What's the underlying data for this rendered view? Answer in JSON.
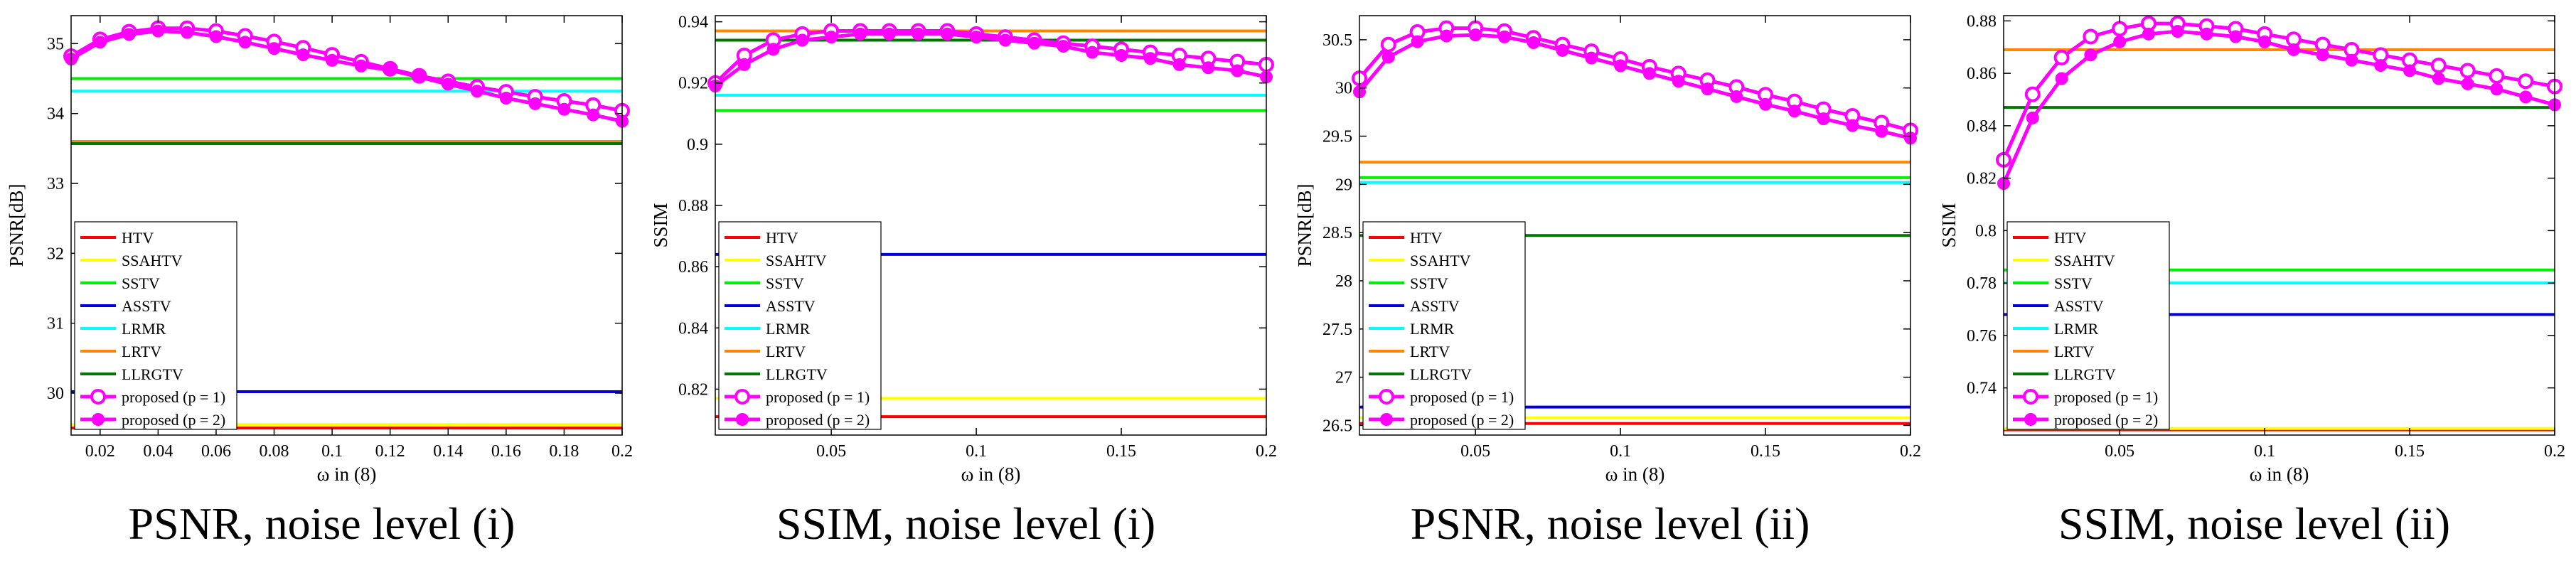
{
  "figure": {
    "captions": [
      "PSNR, noise level (i)",
      "SSIM, noise level (i)",
      "PSNR, noise level (ii)",
      "SSIM, noise level (ii)"
    ]
  },
  "legend_labels": [
    "HTV",
    "SSAHTV",
    "SSTV",
    "ASSTV",
    "LRMR",
    "LRTV",
    "LLRGTV",
    "proposed (p = 1)",
    "proposed (p = 2)"
  ],
  "chart_data": [
    {
      "type": "line",
      "title": "PSNR, noise level (i)",
      "xlabel": "ω in (8)",
      "ylabel": "PSNR[dB]",
      "xlim": [
        0.01,
        0.2
      ],
      "ylim": [
        29.4,
        35.4
      ],
      "xticks": [
        0.02,
        0.04,
        0.06,
        0.08,
        0.1,
        0.12,
        0.14,
        0.16,
        0.18,
        0.2
      ],
      "xtick_labels": [
        "0.02",
        "0.04",
        "0.06",
        "0.08",
        "0.1",
        "0.12",
        "0.14",
        "0.16",
        "0.18",
        "0.2"
      ],
      "yticks": [
        30,
        31,
        32,
        33,
        34,
        35
      ],
      "ytick_labels": [
        "30",
        "31",
        "32",
        "33",
        "34",
        "35"
      ],
      "grid": false,
      "legend_position": "bottom-left",
      "baselines": [
        {
          "name": "HTV",
          "value": 29.5,
          "color": "#ff0000"
        },
        {
          "name": "SSAHTV",
          "value": 29.55,
          "color": "#ffff00"
        },
        {
          "name": "SSTV",
          "value": 34.5,
          "color": "#00ee00"
        },
        {
          "name": "ASSTV",
          "value": 30.02,
          "color": "#0000dd"
        },
        {
          "name": "LRMR",
          "value": 34.32,
          "color": "#00ffff"
        },
        {
          "name": "LRTV",
          "value": 33.6,
          "color": "#ff8800"
        },
        {
          "name": "LLRGTV",
          "value": 33.57,
          "color": "#007700"
        }
      ],
      "series": [
        {
          "name": "proposed (p = 1)",
          "marker": "open-circle",
          "color": "#ff00ff",
          "x": [
            0.01,
            0.02,
            0.03,
            0.04,
            0.05,
            0.06,
            0.07,
            0.08,
            0.09,
            0.1,
            0.11,
            0.12,
            0.13,
            0.14,
            0.15,
            0.16,
            0.17,
            0.18,
            0.19,
            0.2
          ],
          "values": [
            34.82,
            35.06,
            35.17,
            35.22,
            35.22,
            35.18,
            35.11,
            35.03,
            34.94,
            34.84,
            34.74,
            34.64,
            34.54,
            34.46,
            34.38,
            34.31,
            34.24,
            34.18,
            34.12,
            34.04
          ]
        },
        {
          "name": "proposed (p = 2)",
          "marker": "filled-circle",
          "color": "#ff00ff",
          "x": [
            0.01,
            0.02,
            0.03,
            0.04,
            0.05,
            0.06,
            0.07,
            0.08,
            0.09,
            0.1,
            0.11,
            0.12,
            0.13,
            0.14,
            0.15,
            0.16,
            0.17,
            0.18,
            0.19,
            0.2
          ],
          "values": [
            34.78,
            35.02,
            35.13,
            35.18,
            35.16,
            35.1,
            35.02,
            34.93,
            34.84,
            34.76,
            34.68,
            34.62,
            34.52,
            34.42,
            34.32,
            34.22,
            34.14,
            34.06,
            33.98,
            33.89
          ]
        }
      ]
    },
    {
      "type": "line",
      "title": "SSIM, noise level (i)",
      "xlabel": "ω in (8)",
      "ylabel": "SSIM",
      "xlim": [
        0.01,
        0.2
      ],
      "ylim": [
        0.805,
        0.942
      ],
      "xticks": [
        0.05,
        0.1,
        0.15,
        0.2
      ],
      "xtick_labels": [
        "0.05",
        "0.1",
        "0.15",
        "0.2"
      ],
      "yticks": [
        0.82,
        0.84,
        0.86,
        0.88,
        0.9,
        0.92,
        0.94
      ],
      "ytick_labels": [
        "0.82",
        "0.84",
        "0.86",
        "0.88",
        "0.9",
        "0.92",
        "0.94"
      ],
      "grid": false,
      "legend_position": "bottom-left",
      "baselines": [
        {
          "name": "HTV",
          "value": 0.811,
          "color": "#ff0000"
        },
        {
          "name": "SSAHTV",
          "value": 0.817,
          "color": "#ffff00"
        },
        {
          "name": "SSTV",
          "value": 0.911,
          "color": "#00ee00"
        },
        {
          "name": "ASSTV",
          "value": 0.864,
          "color": "#0000dd"
        },
        {
          "name": "LRMR",
          "value": 0.916,
          "color": "#00ffff"
        },
        {
          "name": "LRTV",
          "value": 0.937,
          "color": "#ff8800"
        },
        {
          "name": "LLRGTV",
          "value": 0.934,
          "color": "#007700"
        }
      ],
      "series": [
        {
          "name": "proposed (p = 1)",
          "marker": "open-circle",
          "color": "#ff00ff",
          "x": [
            0.01,
            0.02,
            0.03,
            0.04,
            0.05,
            0.06,
            0.07,
            0.08,
            0.09,
            0.1,
            0.11,
            0.12,
            0.13,
            0.14,
            0.15,
            0.16,
            0.17,
            0.18,
            0.19,
            0.2
          ],
          "values": [
            0.92,
            0.929,
            0.934,
            0.936,
            0.937,
            0.937,
            0.937,
            0.937,
            0.937,
            0.936,
            0.935,
            0.934,
            0.933,
            0.932,
            0.931,
            0.93,
            0.929,
            0.928,
            0.927,
            0.926
          ]
        },
        {
          "name": "proposed (p = 2)",
          "marker": "filled-circle",
          "color": "#ff00ff",
          "x": [
            0.01,
            0.02,
            0.03,
            0.04,
            0.05,
            0.06,
            0.07,
            0.08,
            0.09,
            0.1,
            0.11,
            0.12,
            0.13,
            0.14,
            0.15,
            0.16,
            0.17,
            0.18,
            0.19,
            0.2
          ],
          "values": [
            0.919,
            0.926,
            0.931,
            0.934,
            0.935,
            0.936,
            0.936,
            0.936,
            0.936,
            0.935,
            0.934,
            0.933,
            0.932,
            0.93,
            0.929,
            0.928,
            0.926,
            0.925,
            0.924,
            0.922
          ]
        }
      ]
    },
    {
      "type": "line",
      "title": "PSNR, noise level (ii)",
      "xlabel": "ω in (8)",
      "ylabel": "PSNR[dB]",
      "xlim": [
        0.01,
        0.2
      ],
      "ylim": [
        26.4,
        30.75
      ],
      "xticks": [
        0.05,
        0.1,
        0.15,
        0.2
      ],
      "xtick_labels": [
        "0.05",
        "0.1",
        "0.15",
        "0.2"
      ],
      "yticks": [
        26.5,
        27,
        27.5,
        28,
        28.5,
        29,
        29.5,
        30,
        30.5
      ],
      "ytick_labels": [
        "26.5",
        "27",
        "27.5",
        "28",
        "28.5",
        "29",
        "29.5",
        "30",
        "30.5"
      ],
      "grid": false,
      "legend_position": "bottom-left",
      "baselines": [
        {
          "name": "HTV",
          "value": 26.52,
          "color": "#ff0000"
        },
        {
          "name": "SSAHTV",
          "value": 26.58,
          "color": "#ffff00"
        },
        {
          "name": "SSTV",
          "value": 29.07,
          "color": "#00ee00"
        },
        {
          "name": "ASSTV",
          "value": 26.69,
          "color": "#0000dd"
        },
        {
          "name": "LRMR",
          "value": 29.02,
          "color": "#00ffff"
        },
        {
          "name": "LRTV",
          "value": 29.23,
          "color": "#ff8800"
        },
        {
          "name": "LLRGTV",
          "value": 28.47,
          "color": "#007700"
        }
      ],
      "series": [
        {
          "name": "proposed (p = 1)",
          "marker": "open-circle",
          "color": "#ff00ff",
          "x": [
            0.01,
            0.02,
            0.03,
            0.04,
            0.05,
            0.06,
            0.07,
            0.08,
            0.09,
            0.1,
            0.11,
            0.12,
            0.13,
            0.14,
            0.15,
            0.16,
            0.17,
            0.18,
            0.19,
            0.2
          ],
          "values": [
            30.1,
            30.45,
            30.58,
            30.62,
            30.62,
            30.59,
            30.52,
            30.45,
            30.38,
            30.3,
            30.22,
            30.15,
            30.08,
            30.01,
            29.93,
            29.86,
            29.78,
            29.71,
            29.64,
            29.56
          ]
        },
        {
          "name": "proposed (p = 2)",
          "marker": "filled-circle",
          "color": "#ff00ff",
          "x": [
            0.01,
            0.02,
            0.03,
            0.04,
            0.05,
            0.06,
            0.07,
            0.08,
            0.09,
            0.1,
            0.11,
            0.12,
            0.13,
            0.14,
            0.15,
            0.16,
            0.17,
            0.18,
            0.19,
            0.2
          ],
          "values": [
            29.96,
            30.32,
            30.48,
            30.54,
            30.55,
            30.53,
            30.47,
            30.39,
            30.31,
            30.23,
            30.15,
            30.07,
            29.99,
            29.91,
            29.83,
            29.76,
            29.68,
            29.61,
            29.55,
            29.48
          ]
        }
      ]
    },
    {
      "type": "line",
      "title": "SSIM, noise level (ii)",
      "xlabel": "ω in (8)",
      "ylabel": "SSIM",
      "xlim": [
        0.01,
        0.2
      ],
      "ylim": [
        0.722,
        0.882
      ],
      "xticks": [
        0.05,
        0.1,
        0.15,
        0.2
      ],
      "xtick_labels": [
        "0.05",
        "0.1",
        "0.15",
        "0.2"
      ],
      "yticks": [
        0.74,
        0.76,
        0.78,
        0.8,
        0.82,
        0.84,
        0.86,
        0.88
      ],
      "ytick_labels": [
        "0.74",
        "0.76",
        "0.78",
        "0.8",
        "0.82",
        "0.84",
        "0.86",
        "0.88"
      ],
      "grid": false,
      "legend_position": "bottom-left",
      "baselines": [
        {
          "name": "HTV",
          "value": 0.724,
          "color": "#ff0000"
        },
        {
          "name": "SSAHTV",
          "value": 0.7245,
          "color": "#ffff00"
        },
        {
          "name": "SSTV",
          "value": 0.785,
          "color": "#00ee00"
        },
        {
          "name": "ASSTV",
          "value": 0.768,
          "color": "#0000dd"
        },
        {
          "name": "LRMR",
          "value": 0.78,
          "color": "#00ffff"
        },
        {
          "name": "LRTV",
          "value": 0.869,
          "color": "#ff8800"
        },
        {
          "name": "LLRGTV",
          "value": 0.847,
          "color": "#007700"
        }
      ],
      "series": [
        {
          "name": "proposed (p = 1)",
          "marker": "open-circle",
          "color": "#ff00ff",
          "x": [
            0.01,
            0.02,
            0.03,
            0.04,
            0.05,
            0.06,
            0.07,
            0.08,
            0.09,
            0.1,
            0.11,
            0.12,
            0.13,
            0.14,
            0.15,
            0.16,
            0.17,
            0.18,
            0.19,
            0.2
          ],
          "values": [
            0.827,
            0.852,
            0.866,
            0.874,
            0.877,
            0.879,
            0.879,
            0.878,
            0.877,
            0.875,
            0.873,
            0.871,
            0.869,
            0.867,
            0.865,
            0.863,
            0.861,
            0.859,
            0.857,
            0.855
          ]
        },
        {
          "name": "proposed (p = 2)",
          "marker": "filled-circle",
          "color": "#ff00ff",
          "x": [
            0.01,
            0.02,
            0.03,
            0.04,
            0.05,
            0.06,
            0.07,
            0.08,
            0.09,
            0.1,
            0.11,
            0.12,
            0.13,
            0.14,
            0.15,
            0.16,
            0.17,
            0.18,
            0.19,
            0.2
          ],
          "values": [
            0.818,
            0.843,
            0.858,
            0.867,
            0.872,
            0.875,
            0.876,
            0.875,
            0.874,
            0.872,
            0.869,
            0.867,
            0.865,
            0.863,
            0.861,
            0.858,
            0.856,
            0.854,
            0.851,
            0.848
          ]
        }
      ]
    }
  ]
}
